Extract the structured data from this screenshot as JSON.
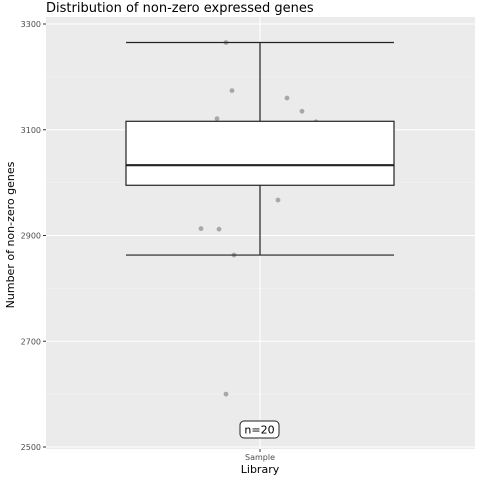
{
  "chart_data": {
    "type": "boxplot",
    "title": "Distribution of non-zero expressed genes",
    "xlabel": "Library",
    "ylabel": "Number of non-zero genes",
    "categories": [
      "Sample"
    ],
    "ylim": [
      2500,
      3300
    ],
    "yticks": [
      2500,
      2700,
      2900,
      3100,
      3300
    ],
    "grid": true,
    "box": {
      "whisker_low": 2863,
      "q1": 2995,
      "median": 3033,
      "q3": 3116,
      "whisker_high": 3265
    },
    "points": [
      3265,
      3174,
      3160,
      3135,
      3121,
      3115,
      3108,
      3102,
      3077,
      3043,
      3022,
      3017,
      3012,
      3010,
      3005,
      2967,
      2913,
      2912,
      2863,
      2600
    ],
    "annotation": "n=20"
  }
}
